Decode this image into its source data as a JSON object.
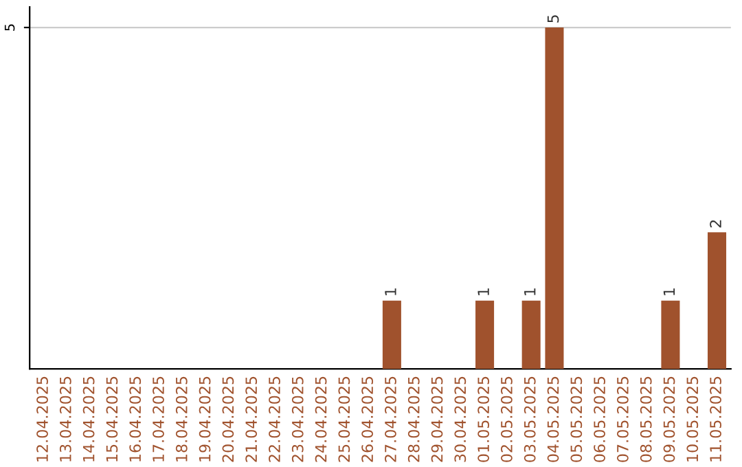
{
  "chart_data": {
    "type": "bar",
    "categories": [
      "12.04.2025",
      "13.04.2025",
      "14.04.2025",
      "15.04.2025",
      "16.04.2025",
      "17.04.2025",
      "18.04.2025",
      "19.04.2025",
      "20.04.2025",
      "21.04.2025",
      "22.04.2025",
      "23.04.2025",
      "24.04.2025",
      "25.04.2025",
      "26.04.2025",
      "27.04.2025",
      "28.04.2025",
      "29.04.2025",
      "30.04.2025",
      "01.05.2025",
      "02.05.2025",
      "03.05.2025",
      "04.05.2025",
      "05.05.2025",
      "06.05.2025",
      "07.05.2025",
      "08.05.2025",
      "09.05.2025",
      "10.05.2025",
      "11.05.2025"
    ],
    "values": [
      null,
      null,
      null,
      null,
      null,
      null,
      null,
      null,
      null,
      null,
      null,
      null,
      null,
      null,
      null,
      1,
      null,
      null,
      null,
      1,
      null,
      1,
      5,
      null,
      null,
      null,
      null,
      1,
      null,
      2
    ],
    "color": "#a0522d",
    "ylim": [
      0,
      5.3
    ],
    "yticks": [
      5
    ],
    "grid": "y",
    "data_labels": true
  }
}
